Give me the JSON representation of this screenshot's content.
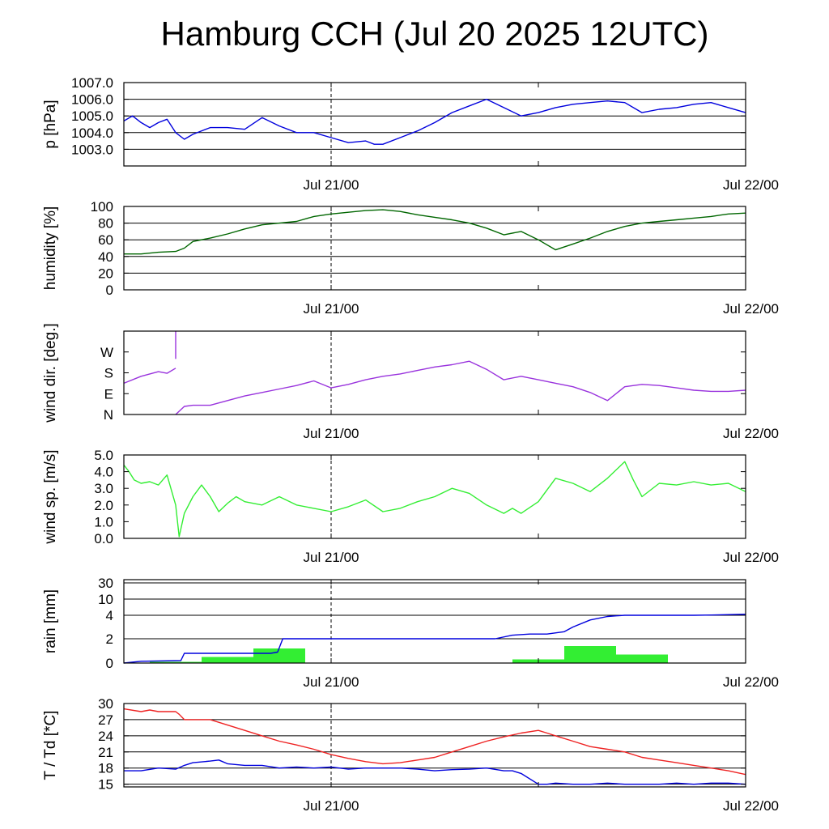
{
  "title": "Hamburg CCH (Jul 20 2025 12UTC)",
  "x_axis": {
    "unit": "hours since Jul 20 12UTC",
    "range": [
      0,
      36
    ],
    "tick_labels": [
      {
        "x": 12,
        "label": "Jul 21/00"
      },
      {
        "x": 36,
        "label": "Jul 22/00"
      }
    ]
  },
  "chart_data": [
    {
      "id": "pressure",
      "type": "line",
      "ylabel": "p [hPa]",
      "ylim": [
        1002.0,
        1007.0
      ],
      "ticks": [
        1003.0,
        1004.0,
        1005.0,
        1006.0,
        1007.0
      ],
      "tick_labels": [
        "1003.0",
        "1004.0",
        "1005.0",
        "1006.0",
        "1007.0"
      ],
      "grid": true,
      "series": [
        {
          "color": "#0000dd",
          "x": [
            0,
            0.5,
            1,
            1.5,
            2,
            2.5,
            3,
            3.5,
            4,
            5,
            6,
            7,
            8,
            9,
            10,
            11,
            12,
            13,
            14,
            14.5,
            15,
            16,
            17,
            18,
            19,
            20,
            21,
            22,
            23,
            24,
            25,
            26,
            27,
            28,
            29,
            30,
            31,
            32,
            33,
            34,
            35,
            36
          ],
          "y": [
            1004.7,
            1005.0,
            1004.6,
            1004.3,
            1004.6,
            1004.8,
            1004.0,
            1003.6,
            1003.9,
            1004.3,
            1004.3,
            1004.2,
            1004.9,
            1004.4,
            1004.0,
            1004.0,
            1003.7,
            1003.4,
            1003.5,
            1003.3,
            1003.3,
            1003.7,
            1004.1,
            1004.6,
            1005.2,
            1005.6,
            1006.0,
            1005.5,
            1005.0,
            1005.2,
            1005.5,
            1005.7,
            1005.8,
            1005.9,
            1005.8,
            1005.2,
            1005.4,
            1005.5,
            1005.7,
            1005.8,
            1005.5,
            1005.2
          ]
        }
      ]
    },
    {
      "id": "humidity",
      "type": "line",
      "ylabel": "humidity [%]",
      "ylim": [
        0,
        100
      ],
      "ticks": [
        0,
        20,
        40,
        60,
        80,
        100
      ],
      "tick_labels": [
        "0",
        "20",
        "40",
        "60",
        "80",
        "100"
      ],
      "grid": true,
      "series": [
        {
          "color": "#006600",
          "x": [
            0,
            1,
            2,
            3,
            3.5,
            4,
            5,
            6,
            7,
            8,
            9,
            10,
            11,
            12,
            13,
            14,
            15,
            16,
            17,
            18,
            19,
            20,
            21,
            22,
            23,
            24,
            25,
            26,
            27,
            28,
            29,
            30,
            31,
            32,
            33,
            34,
            35,
            36
          ],
          "y": [
            43,
            43,
            45,
            46,
            50,
            58,
            62,
            67,
            73,
            78,
            80,
            82,
            88,
            91,
            93,
            95,
            96,
            94,
            90,
            87,
            84,
            80,
            74,
            66,
            70,
            60,
            48,
            55,
            62,
            70,
            76,
            80,
            82,
            84,
            86,
            88,
            91,
            92
          ]
        }
      ]
    },
    {
      "id": "wind_direction",
      "type": "line",
      "ylabel": "wind dir. [deg.]",
      "ylim": [
        0,
        360
      ],
      "ticks": [
        0,
        90,
        180,
        270
      ],
      "tick_labels": [
        "N",
        "E",
        "S",
        "W"
      ],
      "grid": false,
      "series": [
        {
          "color": "#9933dd",
          "x": [
            0,
            1,
            2,
            2.5,
            3
          ],
          "y": [
            135,
            165,
            185,
            178,
            200
          ]
        },
        {
          "color": "#9933dd",
          "x": [
            3,
            3.5,
            4,
            5,
            6,
            7,
            8,
            9,
            10,
            11,
            12,
            13,
            14,
            15,
            16,
            17,
            18,
            19,
            20,
            21,
            22,
            23,
            24,
            25,
            26,
            27,
            28,
            29,
            30,
            31,
            32,
            33,
            34,
            35,
            36
          ],
          "y": [
            0,
            35,
            40,
            40,
            60,
            80,
            95,
            110,
            125,
            145,
            115,
            130,
            150,
            165,
            175,
            190,
            205,
            215,
            230,
            195,
            150,
            165,
            150,
            135,
            120,
            95,
            60,
            120,
            130,
            125,
            115,
            105,
            100,
            100,
            105
          ]
        },
        {
          "color": "#9933dd",
          "x": [
            3,
            3
          ],
          "y": [
            240,
            360
          ]
        }
      ]
    },
    {
      "id": "wind_speed",
      "type": "line",
      "ylabel": "wind sp. [m/s]",
      "ylim": [
        0,
        5
      ],
      "ticks": [
        0.0,
        1.0,
        2.0,
        3.0,
        4.0,
        5.0
      ],
      "tick_labels": [
        "0.0",
        "1.0",
        "2.0",
        "3.0",
        "4.0",
        "5.0"
      ],
      "grid": false,
      "series": [
        {
          "color": "#33ee33",
          "x": [
            0,
            0.3,
            0.6,
            1,
            1.5,
            2,
            2.5,
            3,
            3.2,
            3.5,
            4,
            4.5,
            5,
            5.5,
            6,
            6.5,
            7,
            8,
            9,
            10,
            11,
            12,
            13,
            14,
            15,
            16,
            17,
            18,
            19,
            20,
            21,
            22,
            22.5,
            23,
            24,
            25,
            26,
            27,
            28,
            29,
            29.5,
            30,
            31,
            32,
            33,
            34,
            35,
            36
          ],
          "y": [
            4.4,
            4.0,
            3.5,
            3.3,
            3.4,
            3.2,
            3.8,
            2.0,
            0.1,
            1.5,
            2.5,
            3.2,
            2.5,
            1.6,
            2.1,
            2.5,
            2.2,
            2.0,
            2.5,
            2.0,
            1.8,
            1.6,
            1.9,
            2.3,
            1.6,
            1.8,
            2.2,
            2.5,
            3.0,
            2.7,
            2.0,
            1.5,
            1.8,
            1.5,
            2.2,
            3.6,
            3.3,
            2.8,
            3.6,
            4.6,
            3.5,
            2.5,
            3.3,
            3.2,
            3.4,
            3.2,
            3.3,
            2.8
          ]
        }
      ]
    },
    {
      "id": "rain",
      "type": "bar+line",
      "ylabel": "rain [mm]",
      "scale": "piecewise",
      "ticks": [
        0,
        2,
        4,
        10,
        30
      ],
      "tick_labels": [
        "0",
        "2",
        "4",
        "10",
        "30"
      ],
      "grid": true,
      "bars": {
        "color": "#33ee33",
        "x_start": [
          1.5,
          4.5,
          7.5,
          22.5,
          25.5,
          28.5
        ],
        "x_end": [
          4.5,
          7.5,
          10.5,
          25.5,
          28.5,
          31.5
        ],
        "values": [
          0.1,
          0.5,
          1.2,
          0.3,
          1.4,
          0.7
        ]
      },
      "series": [
        {
          "color": "#0000dd",
          "x": [
            0,
            1,
            3.3,
            3.5,
            8.5,
            8.9,
            9.2,
            20,
            21.5,
            22.5,
            23.5,
            24.5,
            25.5,
            26,
            27,
            28,
            29,
            33,
            34,
            36
          ],
          "y": [
            0.0,
            0.15,
            0.2,
            0.8,
            0.8,
            0.9,
            2.0,
            2.0,
            2.0,
            2.3,
            2.4,
            2.4,
            2.6,
            3.0,
            3.6,
            3.9,
            4.0,
            4.0,
            4.1,
            4.4
          ]
        }
      ]
    },
    {
      "id": "temperature",
      "type": "line",
      "ylabel": "T / Td [*C]",
      "ylim": [
        14.5,
        30.0
      ],
      "ticks": [
        15,
        18,
        21,
        24,
        27,
        30
      ],
      "tick_labels": [
        "15",
        "18",
        "21",
        "24",
        "27",
        "30"
      ],
      "grid": true,
      "series": [
        {
          "color": "#ee2222",
          "x": [
            0,
            1,
            1.5,
            2,
            3,
            3.2,
            3.5,
            4,
            5,
            6,
            7,
            8,
            9,
            10,
            11,
            12,
            13,
            14,
            15,
            16,
            17,
            18,
            19,
            20,
            21,
            22,
            23,
            24,
            24.5,
            25,
            26,
            27,
            28,
            29,
            30,
            31,
            32,
            33,
            34,
            35,
            36
          ],
          "y": [
            29,
            28.5,
            28.8,
            28.5,
            28.5,
            28.0,
            27.0,
            27.0,
            27.0,
            26.0,
            25.0,
            24.0,
            23.0,
            22.3,
            21.5,
            20.5,
            19.8,
            19.2,
            18.8,
            19.0,
            19.5,
            20.0,
            21.0,
            22.0,
            23.0,
            23.8,
            24.5,
            25.0,
            24.5,
            24.0,
            23.0,
            22.0,
            21.5,
            21.0,
            20.0,
            19.5,
            19.0,
            18.5,
            18.0,
            17.5,
            16.8
          ]
        },
        {
          "color": "#0000dd",
          "x": [
            0,
            1,
            2,
            3,
            3.5,
            4,
            5,
            5.5,
            6,
            7,
            8,
            9,
            10,
            11,
            12,
            13,
            14,
            15,
            16,
            17,
            18,
            19,
            20,
            21,
            22,
            22.5,
            23,
            24,
            24.5,
            25,
            26,
            27,
            28,
            29,
            30,
            31,
            32,
            33,
            34,
            35,
            36
          ],
          "y": [
            17.5,
            17.5,
            18.0,
            17.8,
            18.5,
            19.0,
            19.3,
            19.5,
            18.8,
            18.5,
            18.5,
            18.0,
            18.2,
            18.0,
            18.2,
            17.8,
            18.0,
            18.0,
            18.0,
            17.8,
            17.5,
            17.7,
            17.8,
            18.0,
            17.5,
            17.5,
            17.0,
            15.0,
            15.0,
            15.2,
            15.0,
            15.0,
            15.2,
            15.0,
            15.0,
            15.0,
            15.2,
            15.0,
            15.2,
            15.2,
            15.0
          ]
        }
      ]
    }
  ]
}
